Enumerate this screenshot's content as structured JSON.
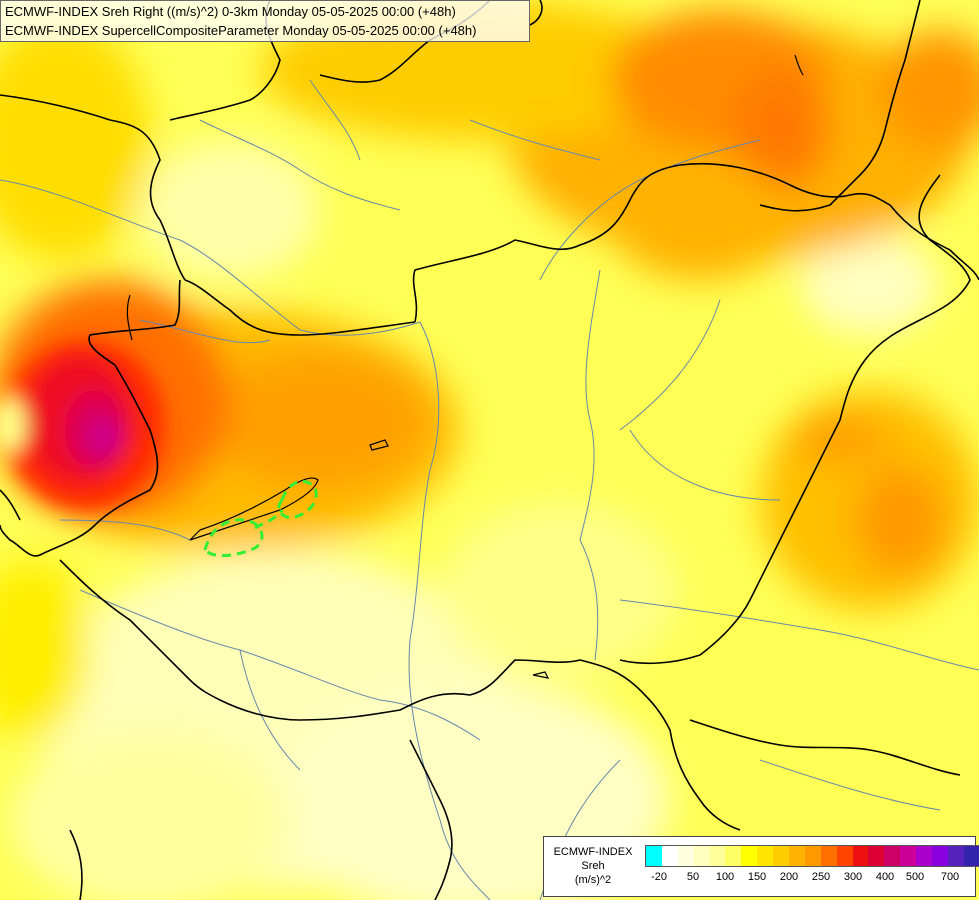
{
  "title": {
    "line1": "ECMWF-INDEX Sreh Right ((m/s)^2) 0-3km Monday 05-05-2025 00:00 (+48h)",
    "line2": "ECMWF-INDEX SupercellCompositeParameter Monday 05-05-2025 00:00 (+48h)"
  },
  "legend": {
    "source": "ECMWF-INDEX",
    "variable": "Sreh",
    "unit": "(m/s)^2",
    "colors": [
      "#00ffff",
      "#ffffff",
      "#ffffe0",
      "#ffffc0",
      "#ffff99",
      "#ffff66",
      "#ffff00",
      "#ffe600",
      "#ffcc00",
      "#ffb300",
      "#ff9900",
      "#ff7000",
      "#ff4400",
      "#ee1111",
      "#dd0033",
      "#cc0066",
      "#cc0099",
      "#aa00cc",
      "#8800dd",
      "#5522bb",
      "#3322aa",
      "#111188"
    ],
    "ticks": [
      "-20",
      "50",
      "100",
      "150",
      "200",
      "250",
      "300",
      "400",
      "500",
      "700"
    ]
  },
  "colors": {
    "contour": "#33ee33",
    "border": "#000000",
    "river": "#6688aa"
  }
}
